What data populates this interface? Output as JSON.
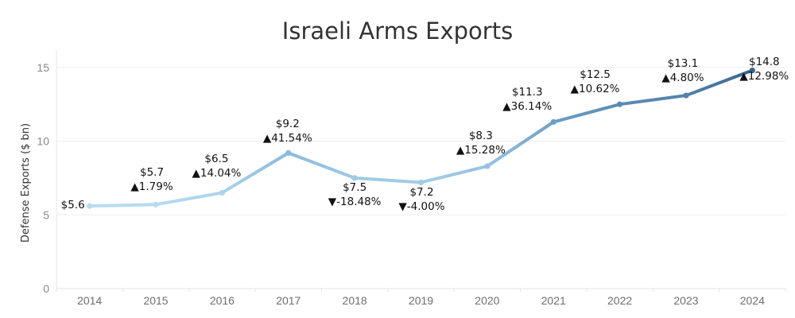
{
  "chart_data": {
    "type": "line",
    "title": "Israeli Arms Exports",
    "xlabel": "",
    "ylabel": "Defense Exports ($ bn)",
    "ylim": [
      0,
      15.8
    ],
    "yticks": [
      0,
      5,
      10,
      15
    ],
    "grid": true,
    "legend": "none",
    "categories": [
      "2014",
      "2015",
      "2016",
      "2017",
      "2018",
      "2019",
      "2020",
      "2021",
      "2022",
      "2023",
      "2024"
    ],
    "series": [
      {
        "name": "Defense Exports",
        "values": [
          5.6,
          5.7,
          6.5,
          9.2,
          7.5,
          7.2,
          8.3,
          11.3,
          12.5,
          13.1,
          14.8
        ],
        "value_labels": [
          "$5.6",
          "$5.7",
          "$6.5",
          "$9.2",
          "$7.5",
          "$7.2",
          "$8.3",
          "$11.3",
          "$12.5",
          "$13.1",
          "$14.8"
        ],
        "change_labels": [
          "",
          "▲1.79%",
          "▲14.04%",
          "▲41.54%",
          "▼-18.48%",
          "▼-4.00%",
          "▲15.28%",
          "▲36.14%",
          "▲10.62%",
          "▲4.80%",
          "▲12.98%"
        ]
      }
    ],
    "colors": {
      "low": "#b7dcf0",
      "mid": "#7eb0d5",
      "high": "#3a6592"
    }
  }
}
